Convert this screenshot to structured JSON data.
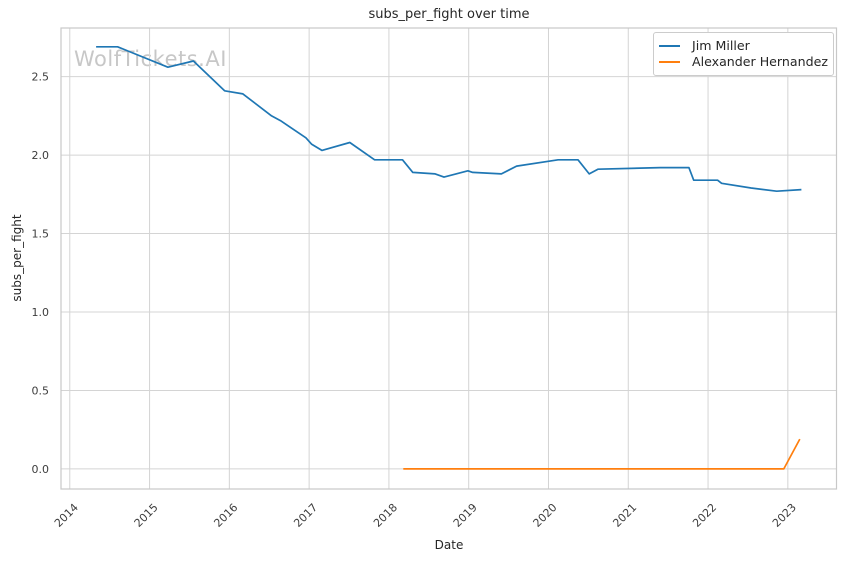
{
  "watermark": "WolfTickets.AI",
  "chart_data": {
    "type": "line",
    "title": "subs_per_fight over time",
    "xlabel": "Date",
    "ylabel": "subs_per_fight",
    "xlim": [
      2013.89,
      2023.61
    ],
    "ylim": [
      -0.128,
      2.81
    ],
    "x_ticks": [
      2014,
      2015,
      2016,
      2017,
      2018,
      2019,
      2020,
      2021,
      2022,
      2023
    ],
    "y_ticks": [
      0.0,
      0.5,
      1.0,
      1.5,
      2.0,
      2.5
    ],
    "y_tick_labels": [
      "0.0",
      "0.5",
      "1.0",
      "1.5",
      "2.0",
      "2.5"
    ],
    "grid": true,
    "legend_position": "upper right",
    "background_color": "#ffffff",
    "grid_color": "#d4d4d4",
    "spine_color": "#c8c8c8",
    "series": [
      {
        "name": "Jim Miller",
        "color": "#1f77b4",
        "points": [
          [
            2014.33,
            2.69
          ],
          [
            2014.6,
            2.69
          ],
          [
            2015.23,
            2.56
          ],
          [
            2015.55,
            2.6
          ],
          [
            2015.94,
            2.41
          ],
          [
            2016.17,
            2.39
          ],
          [
            2016.53,
            2.25
          ],
          [
            2016.64,
            2.22
          ],
          [
            2016.96,
            2.11
          ],
          [
            2017.03,
            2.07
          ],
          [
            2017.16,
            2.03
          ],
          [
            2017.51,
            2.08
          ],
          [
            2017.82,
            1.97
          ],
          [
            2018.17,
            1.97
          ],
          [
            2018.3,
            1.89
          ],
          [
            2018.58,
            1.88
          ],
          [
            2018.69,
            1.86
          ],
          [
            2018.99,
            1.9
          ],
          [
            2019.05,
            1.89
          ],
          [
            2019.41,
            1.88
          ],
          [
            2019.6,
            1.93
          ],
          [
            2020.12,
            1.97
          ],
          [
            2020.37,
            1.97
          ],
          [
            2020.51,
            1.88
          ],
          [
            2020.62,
            1.91
          ],
          [
            2021.4,
            1.92
          ],
          [
            2021.76,
            1.92
          ],
          [
            2021.82,
            1.84
          ],
          [
            2022.12,
            1.84
          ],
          [
            2022.17,
            1.82
          ],
          [
            2022.54,
            1.79
          ],
          [
            2022.86,
            1.77
          ],
          [
            2023.17,
            1.78
          ]
        ]
      },
      {
        "name": "Alexander Hernandez",
        "color": "#ff7f0e",
        "points": [
          [
            2018.18,
            0.0
          ],
          [
            2019.0,
            0.0
          ],
          [
            2020.0,
            0.0
          ],
          [
            2021.0,
            0.0
          ],
          [
            2022.0,
            0.0
          ],
          [
            2022.95,
            0.0
          ],
          [
            2023.15,
            0.19
          ]
        ]
      }
    ]
  }
}
